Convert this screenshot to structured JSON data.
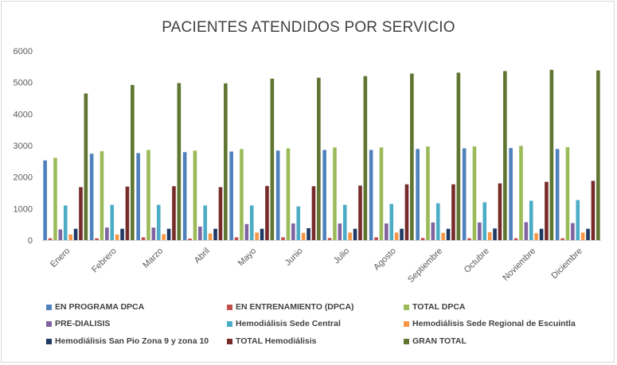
{
  "chart_data": {
    "type": "bar",
    "title": "PACIENTES ATENDIDOS POR SERVICIO",
    "xlabel": "",
    "ylabel": "",
    "ylim": [
      0,
      6000
    ],
    "yticks": [
      0,
      1000,
      2000,
      3000,
      4000,
      5000,
      6000
    ],
    "grid": false,
    "legend_position": "bottom",
    "categories": [
      "Enero",
      "Febrero",
      "Marzo",
      "Abril",
      "Mayo",
      "Junio",
      "Julio",
      "Agosto",
      "Septiembre",
      "Octubre",
      "Noviembre",
      "Diciembre"
    ],
    "series": [
      {
        "name": "EN PROGRAMA DPCA",
        "color": "#4f81bd",
        "values": [
          2530,
          2740,
          2760,
          2790,
          2810,
          2840,
          2860,
          2860,
          2890,
          2910,
          2920,
          2890
        ]
      },
      {
        "name": "EN ENTRENAMIENTO (DPCA)",
        "color": "#c0504d",
        "values": [
          60,
          60,
          90,
          50,
          90,
          90,
          70,
          90,
          70,
          60,
          60,
          60
        ]
      },
      {
        "name": "TOTAL DPCA",
        "color": "#9bbb59",
        "values": [
          2610,
          2820,
          2860,
          2840,
          2890,
          2910,
          2940,
          2940,
          2970,
          2970,
          2990,
          2950
        ]
      },
      {
        "name": "PRE-DIALISIS",
        "color": "#8064a2",
        "values": [
          340,
          400,
          400,
          430,
          510,
          530,
          530,
          530,
          560,
          560,
          570,
          540
        ]
      },
      {
        "name": "Hemodiálisis Sede Central",
        "color": "#4bacc6",
        "values": [
          1100,
          1120,
          1120,
          1100,
          1100,
          1070,
          1120,
          1150,
          1170,
          1200,
          1250,
          1270
        ]
      },
      {
        "name": "Hemodiálisis Sede Regional de Escuintla",
        "color": "#f79646",
        "values": [
          180,
          180,
          190,
          210,
          240,
          230,
          240,
          240,
          230,
          250,
          220,
          240
        ]
      },
      {
        "name": "Hemodiálisis San Pio Zona 9 y zona 10",
        "color": "#1f3864",
        "values": [
          360,
          360,
          360,
          360,
          360,
          380,
          360,
          360,
          360,
          370,
          360,
          360
        ]
      },
      {
        "name": "TOTAL Hemodiálisis",
        "color": "#772c2a",
        "values": [
          1680,
          1700,
          1710,
          1680,
          1720,
          1710,
          1730,
          1770,
          1770,
          1800,
          1850,
          1880
        ]
      },
      {
        "name": "GRAN TOTAL",
        "color": "#5f7530",
        "values": [
          4650,
          4920,
          4980,
          4970,
          5120,
          5150,
          5200,
          5280,
          5310,
          5360,
          5400,
          5380
        ]
      }
    ]
  }
}
